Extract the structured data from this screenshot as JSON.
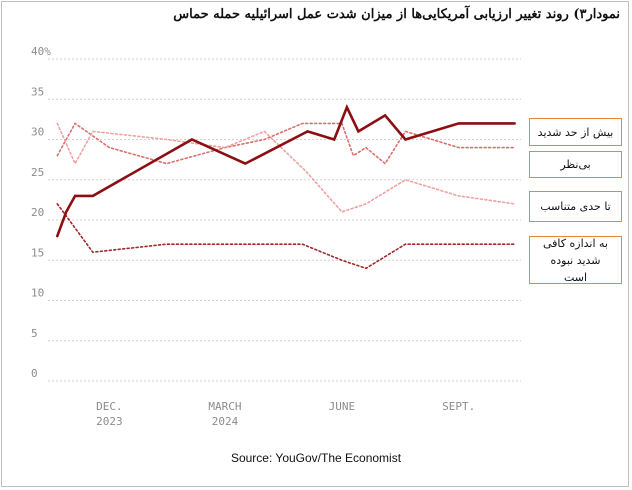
{
  "title": "نمودار۳) روند تغییر ارزیابی آمریکایی‌ها از میزان شدت عمل اسرائیلیه حمله حماس",
  "source": "Source: YouGov/The Economist",
  "colors": {
    "too_far": "#8b0f12",
    "about_right": "#f0a0a0",
    "not_sure": "#d9706e",
    "not_far_enough": "#9e2a2b",
    "gridline": "#d0d0d0",
    "legend_border": "#e08a3a"
  },
  "chart_data": {
    "type": "line",
    "title": "نمودار۳) روند تغییر ارزیابی آمریکایی‌ها از میزان شدت عمل اسرائیلیه حمله حماس",
    "xlabel": "",
    "ylabel": "",
    "ylim": [
      0,
      40
    ],
    "y_ticks": [
      "40%",
      "35",
      "30",
      "25",
      "20",
      "15",
      "10",
      "5",
      "0"
    ],
    "x_range": [
      "2023-10-20",
      "2024-10-20"
    ],
    "x_ticks": [
      {
        "line1": "DEC.",
        "line2": "2023",
        "date": "2023-12-01"
      },
      {
        "line1": "MARCH",
        "line2": "2024",
        "date": "2024-03-01"
      },
      {
        "line1": "JUNE",
        "line2": "",
        "date": "2024-06-01"
      },
      {
        "line1": "SEPT.",
        "line2": "",
        "date": "2024-09-01"
      }
    ],
    "grid": true,
    "legend_placement": "right",
    "series": [
      {
        "name": "بیش از حد شدید",
        "style": "solid",
        "x": [
          "2023-10-21",
          "2023-10-28",
          "2023-11-04",
          "2023-11-18",
          "2024-02-04",
          "2024-03-17",
          "2024-05-05",
          "2024-05-26",
          "2024-06-05",
          "2024-06-14",
          "2024-07-05",
          "2024-07-21",
          "2024-09-01",
          "2024-10-15"
        ],
        "values": [
          18,
          21,
          23,
          23,
          30,
          27,
          31,
          30,
          34,
          31,
          33,
          30,
          32,
          32
        ]
      },
      {
        "name": "بی‌نظر",
        "style": "dotted",
        "x": [
          "2023-10-21",
          "2023-11-04",
          "2023-12-01",
          "2024-01-15",
          "2024-03-01",
          "2024-04-01",
          "2024-05-01",
          "2024-06-01",
          "2024-06-10",
          "2024-06-20",
          "2024-07-05",
          "2024-07-21",
          "2024-09-01",
          "2024-10-15"
        ],
        "values": [
          28,
          32,
          29,
          27,
          29,
          30,
          32,
          32,
          28,
          29,
          27,
          31,
          29,
          29
        ]
      },
      {
        "name": "تا حدی متناسب",
        "style": "dotted",
        "x": [
          "2023-10-21",
          "2023-11-04",
          "2023-11-18",
          "2024-01-15",
          "2024-03-01",
          "2024-04-01",
          "2024-05-04",
          "2024-06-01",
          "2024-06-20",
          "2024-07-21",
          "2024-09-01",
          "2024-10-15"
        ],
        "values": [
          32,
          27,
          31,
          30,
          29,
          31,
          26,
          21,
          22,
          25,
          23,
          22
        ]
      },
      {
        "name": "به اندازه کافی شدید نبوده است",
        "style": "dotted",
        "x": [
          "2023-10-21",
          "2023-11-04",
          "2023-11-18",
          "2024-01-15",
          "2024-03-01",
          "2024-05-01",
          "2024-06-01",
          "2024-06-20",
          "2024-07-21",
          "2024-09-01",
          "2024-10-15"
        ],
        "values": [
          22,
          19,
          16,
          17,
          17,
          17,
          15,
          14,
          17,
          17,
          17
        ]
      }
    ]
  },
  "legend": [
    {
      "label": "بیش از حد شدید"
    },
    {
      "label": "بی‌نظر"
    },
    {
      "label": "تا حدی متناسب"
    },
    {
      "label": "به اندازه کافی شدید نبوده است"
    }
  ]
}
